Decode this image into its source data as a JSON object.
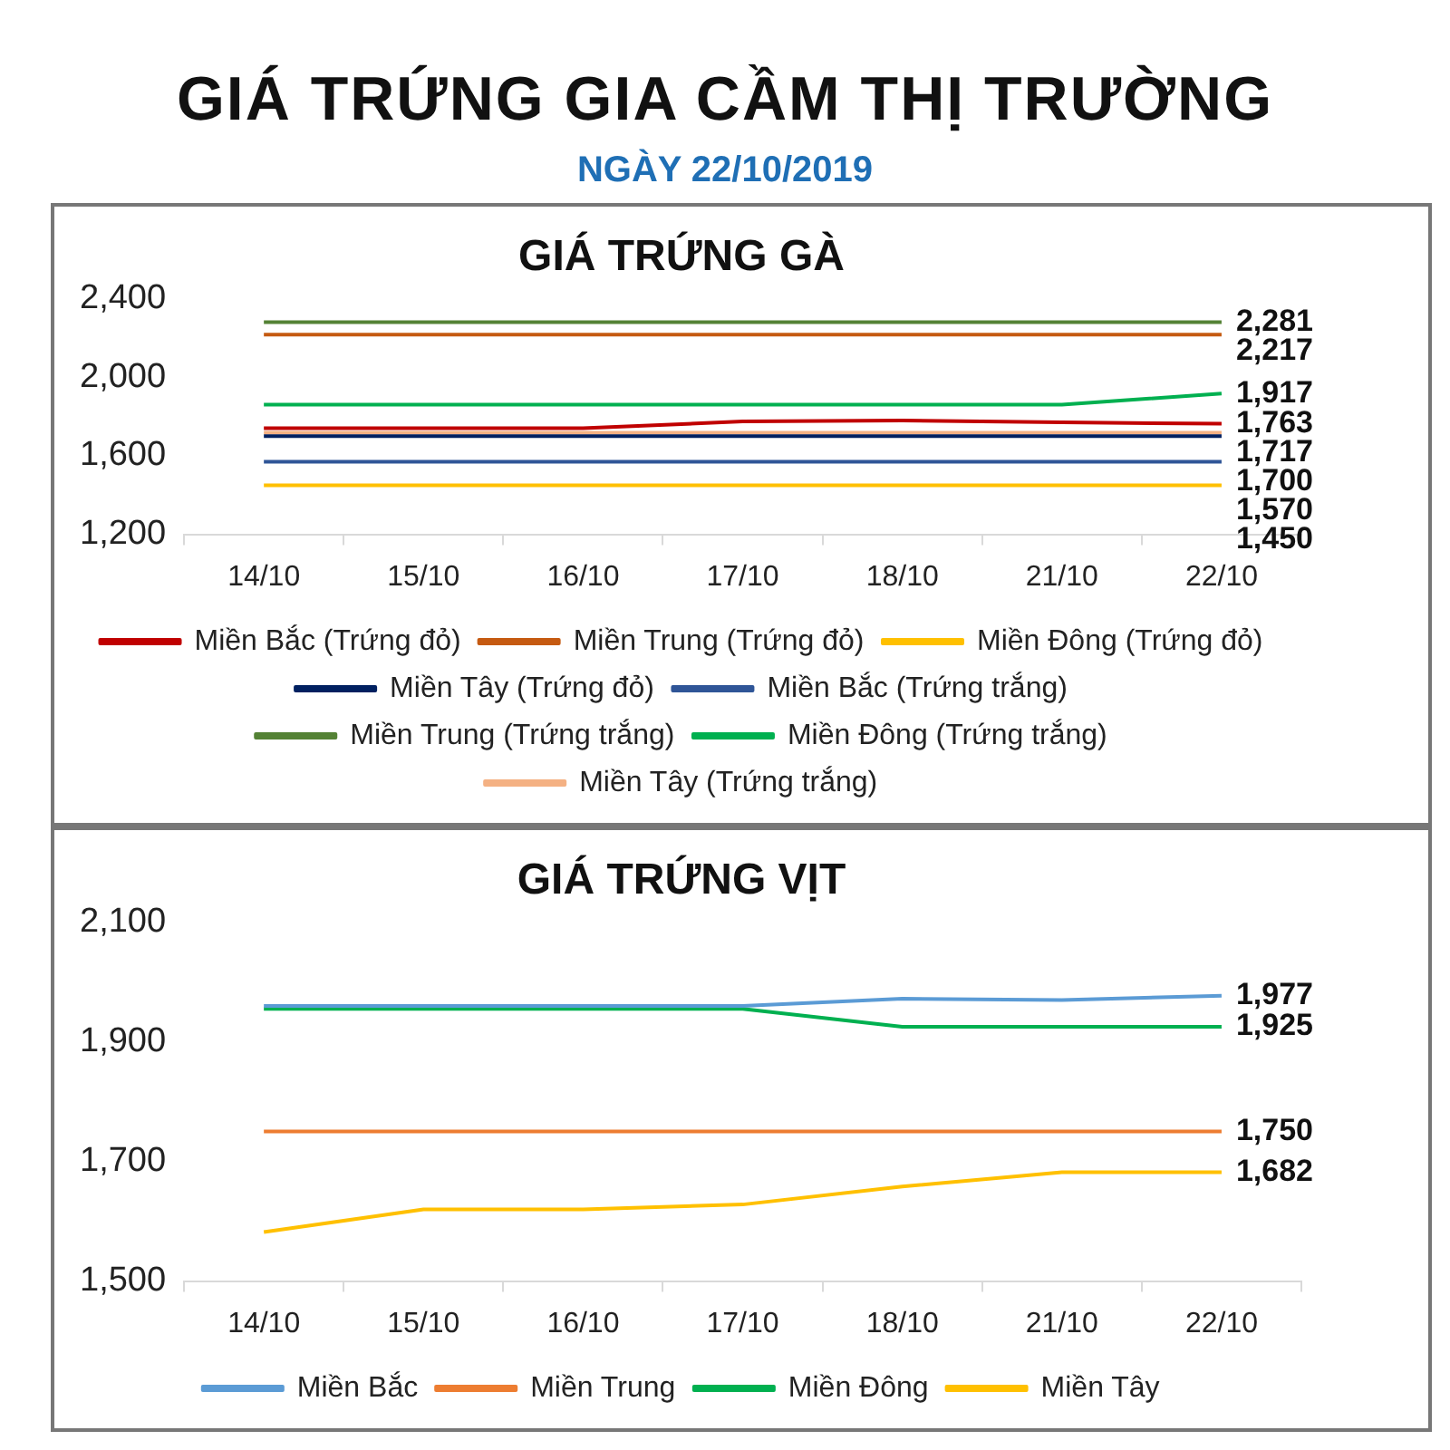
{
  "chart_data": [
    {
      "type": "other",
      "title": "GIÁ TRỨNG GIA CẦM THỊ TRƯỜNG",
      "subtitle": "NGÀY 22/10/2019"
    },
    {
      "type": "line",
      "title": "GIÁ TRỨNG GÀ",
      "categories": [
        "14/10",
        "15/10",
        "16/10",
        "17/10",
        "18/10",
        "21/10",
        "22/10"
      ],
      "ylim": [
        1200,
        2400
      ],
      "yticks": [
        {
          "value": 1200,
          "label": "1,200"
        },
        {
          "value": 1600,
          "label": "1,600"
        },
        {
          "value": 2000,
          "label": "2,000"
        },
        {
          "value": 2400,
          "label": "2,400"
        }
      ],
      "grid": false,
      "legend": "bottom",
      "marker": "none",
      "line_style": "solid",
      "series": [
        {
          "name": "Miền Bắc (Trứng đỏ)",
          "color": "#c00000",
          "values": [
            1740,
            1740,
            1740,
            1775,
            1780,
            1770,
            1763
          ],
          "value_labels": [
            null,
            null,
            null,
            null,
            null,
            null,
            "1,763"
          ]
        },
        {
          "name": "Miền Trung (Trứng đỏ)",
          "color": "#c55a11",
          "values": [
            2217,
            2217,
            2217,
            2217,
            2217,
            2217,
            2217
          ],
          "value_labels": [
            null,
            null,
            null,
            null,
            null,
            null,
            "2,217"
          ]
        },
        {
          "name": "Miền Đông (Trứng đỏ)",
          "color": "#ffc000",
          "values": [
            1450,
            1450,
            1450,
            1450,
            1450,
            1450,
            1450
          ],
          "value_labels": [
            null,
            null,
            null,
            null,
            null,
            null,
            "1,450"
          ]
        },
        {
          "name": "Miền Tây (Trứng đỏ)",
          "color": "#002060",
          "values": [
            1700,
            1700,
            1700,
            1700,
            1700,
            1700,
            1700
          ],
          "value_labels": [
            null,
            null,
            null,
            null,
            null,
            null,
            "1,700"
          ]
        },
        {
          "name": "Miền Bắc (Trứng trắng)",
          "color": "#2f5597",
          "values": [
            1570,
            1570,
            1570,
            1570,
            1570,
            1570,
            1570
          ],
          "value_labels": [
            null,
            null,
            null,
            null,
            null,
            null,
            "1,570"
          ]
        },
        {
          "name": "Miền Trung (Trứng trắng)",
          "color": "#548235",
          "values": [
            2281,
            2281,
            2281,
            2281,
            2281,
            2281,
            2281
          ],
          "value_labels": [
            null,
            null,
            null,
            null,
            null,
            null,
            "2,281"
          ]
        },
        {
          "name": "Miền Đông (Trứng trắng)",
          "color": "#00b050",
          "values": [
            1860,
            1860,
            1860,
            1860,
            1860,
            1860,
            1917
          ],
          "value_labels": [
            null,
            null,
            null,
            null,
            null,
            null,
            "1,917"
          ]
        },
        {
          "name": "Miền Tây (Trứng trắng)",
          "color": "#f4b183",
          "values": [
            1717,
            1717,
            1717,
            1717,
            1717,
            1717,
            1717
          ],
          "value_labels": [
            null,
            null,
            null,
            null,
            null,
            null,
            "1,717"
          ]
        }
      ]
    },
    {
      "type": "line",
      "title": "GIÁ TRỨNG VỊT",
      "categories": [
        "14/10",
        "15/10",
        "16/10",
        "17/10",
        "18/10",
        "21/10",
        "22/10"
      ],
      "ylim": [
        1500,
        2100
      ],
      "yticks": [
        {
          "value": 1500,
          "label": "1,500"
        },
        {
          "value": 1700,
          "label": "1,700"
        },
        {
          "value": 1900,
          "label": "1,900"
        },
        {
          "value": 2100,
          "label": "2,100"
        }
      ],
      "grid": false,
      "legend": "bottom",
      "marker": "none",
      "line_style": "solid",
      "series": [
        {
          "name": "Miền Bắc",
          "color": "#5b9bd5",
          "values": [
            1960,
            1960,
            1960,
            1960,
            1972,
            1970,
            1977
          ],
          "value_labels": [
            null,
            null,
            null,
            null,
            null,
            null,
            "1,977"
          ]
        },
        {
          "name": "Miền Trung",
          "color": "#ed7d31",
          "values": [
            1750,
            1750,
            1750,
            1750,
            1750,
            1750,
            1750
          ],
          "value_labels": [
            null,
            null,
            null,
            null,
            null,
            null,
            "1,750"
          ]
        },
        {
          "name": "Miền Đông",
          "color": "#00b050",
          "values": [
            1955,
            1955,
            1955,
            1955,
            1925,
            1925,
            1925
          ],
          "value_labels": [
            null,
            null,
            null,
            null,
            null,
            null,
            "1,925"
          ]
        },
        {
          "name": "Miền Tây",
          "color": "#ffc000",
          "values": [
            1582,
            1620,
            1620,
            1628,
            1658,
            1682,
            1682
          ],
          "value_labels": [
            null,
            null,
            null,
            null,
            null,
            null,
            "1,682"
          ]
        }
      ]
    }
  ]
}
